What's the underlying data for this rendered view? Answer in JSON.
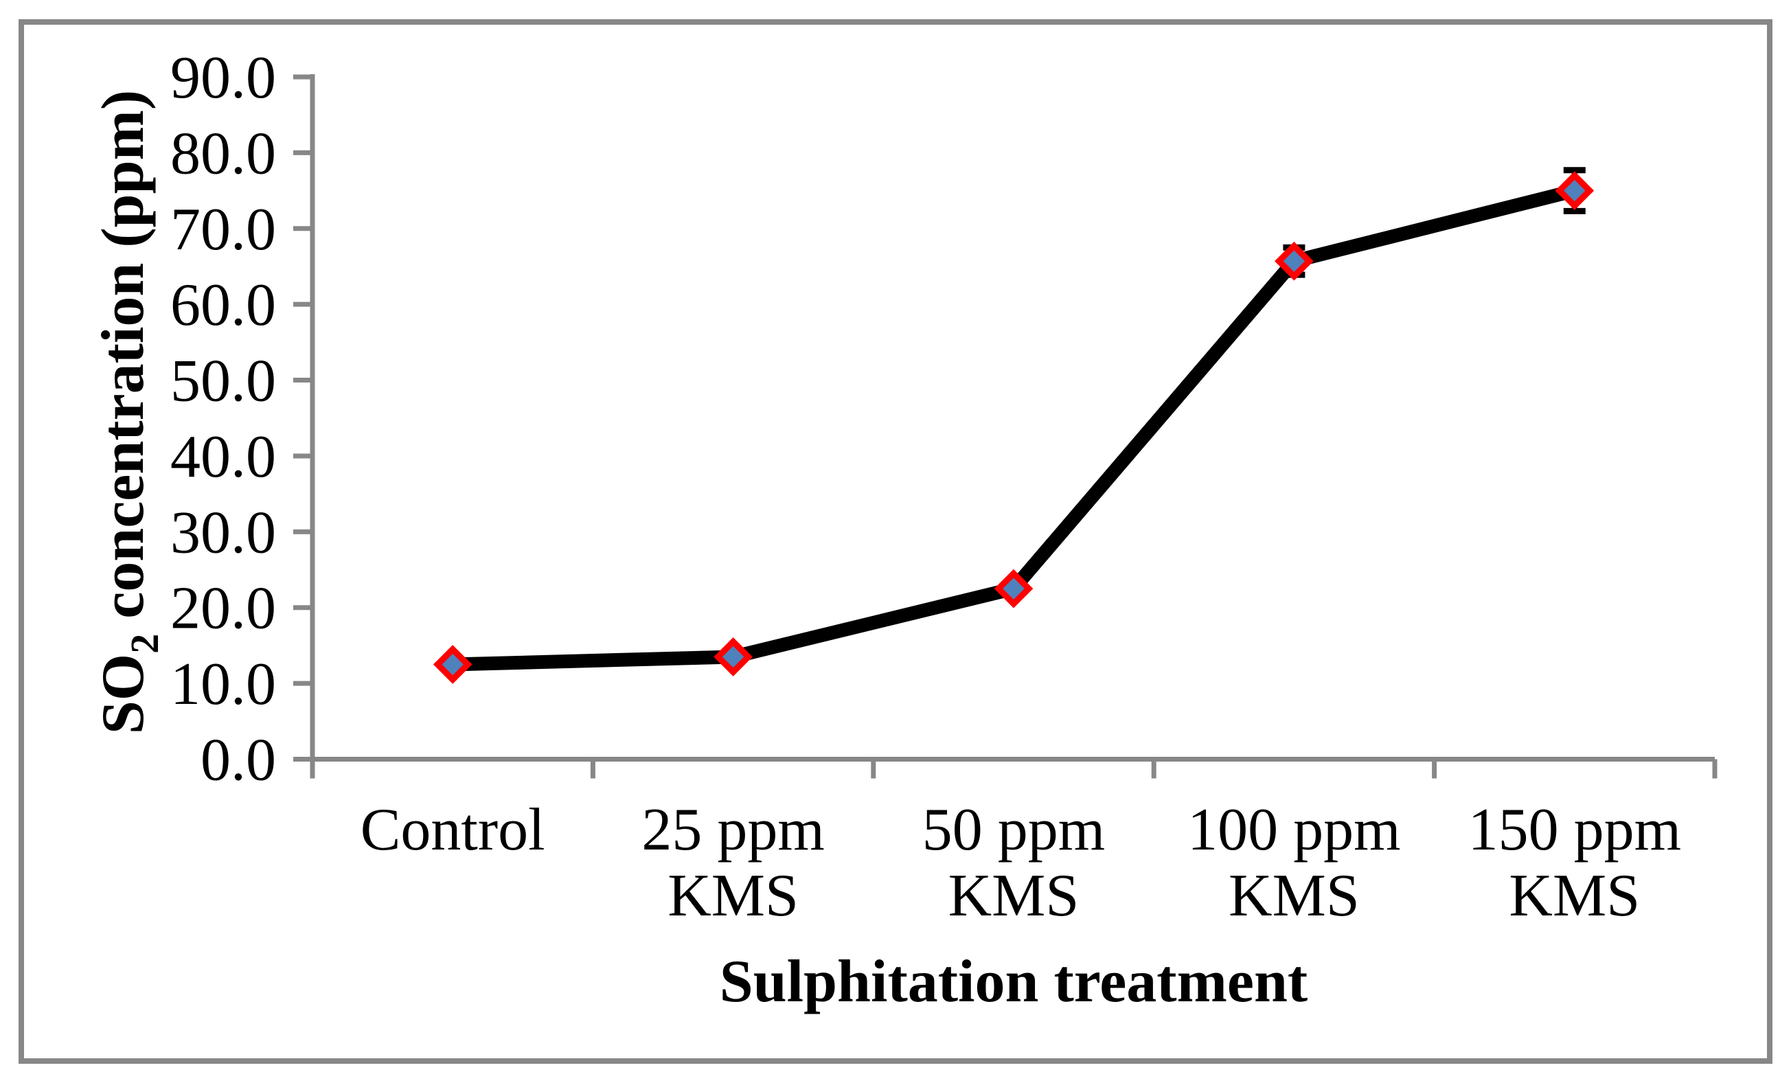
{
  "chart_data": {
    "type": "line",
    "title": "",
    "categories": [
      "Control",
      "25 ppm\nKMS",
      "50 ppm\nKMS",
      "100 ppm\nKMS",
      "150 ppm\nKMS"
    ],
    "series": [
      {
        "name": "SO2 concentration",
        "values": [
          12.5,
          13.5,
          22.5,
          65.7,
          75.0
        ],
        "error_bars": [
          null,
          null,
          null,
          1.8,
          2.7
        ]
      }
    ],
    "xlabel": "Sulphitation treatment",
    "ylabel": {
      "prefix": "SO",
      "subscript": "2",
      "suffix": " concentration (ppm)"
    },
    "ylim": [
      0,
      90
    ],
    "ytick_step": 10,
    "ytick_labels": [
      "0.0",
      "10.0",
      "20.0",
      "30.0",
      "40.0",
      "50.0",
      "60.0",
      "70.0",
      "80.0",
      "90.0"
    ],
    "grid": false,
    "legend_visible": false,
    "marker_shape": "diamond",
    "colors": {
      "line": "#000000",
      "marker_fill": "#4F81BD",
      "marker_border": "#FF0000",
      "axis": "#878787",
      "figure_border": "#878787",
      "text": "#000000",
      "background": "#FFFFFF"
    }
  }
}
